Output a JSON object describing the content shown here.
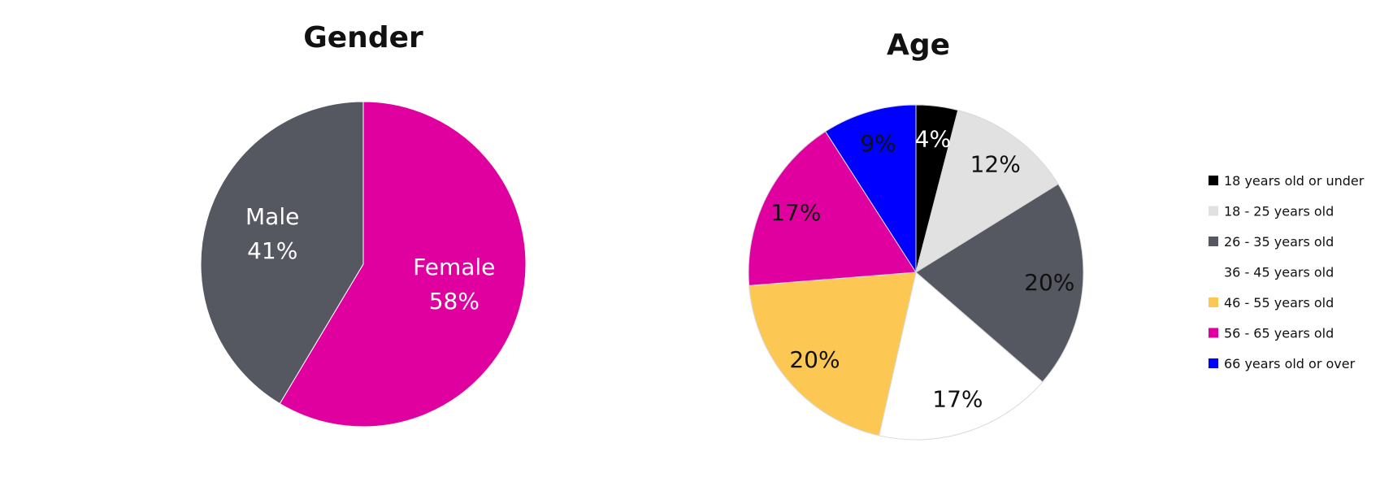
{
  "chart_data": [
    {
      "type": "pie",
      "title": "Gender",
      "start_angle_deg": 0,
      "direction": "clockwise",
      "slices": [
        {
          "label": "Female",
          "value": 58,
          "display": "58%",
          "color": "#E000A0",
          "label_color": "#ffffff"
        },
        {
          "label": "Male",
          "value": 41,
          "display": "41%",
          "color": "#555761",
          "label_color": "#ffffff"
        }
      ],
      "legend": "none"
    },
    {
      "type": "pie",
      "title": "Age",
      "start_angle_deg": 0,
      "direction": "clockwise",
      "slices": [
        {
          "label": "18 years old or under",
          "value": 4,
          "display": "4%",
          "color": "#000000",
          "label_color": "#ffffff"
        },
        {
          "label": "18 - 25 years old",
          "value": 12,
          "display": "12%",
          "color": "#E1E1E1",
          "label_color": "#111111"
        },
        {
          "label": "26 - 35 years old",
          "value": 20,
          "display": "20%",
          "color": "#555761",
          "label_color": "#111111"
        },
        {
          "label": "36 - 45 years old",
          "value": 17,
          "display": "17%",
          "color": "#FFFFFF",
          "label_color": "#111111"
        },
        {
          "label": "46 - 55 years old",
          "value": 20,
          "display": "20%",
          "color": "#FCC853",
          "label_color": "#111111"
        },
        {
          "label": "56 - 65 years old",
          "value": 17,
          "display": "17%",
          "color": "#E000A0",
          "label_color": "#111111"
        },
        {
          "label": "66 years old or over",
          "value": 9,
          "display": "9%",
          "color": "#0000FF",
          "label_color": "#111111"
        }
      ],
      "legend": "right"
    }
  ]
}
